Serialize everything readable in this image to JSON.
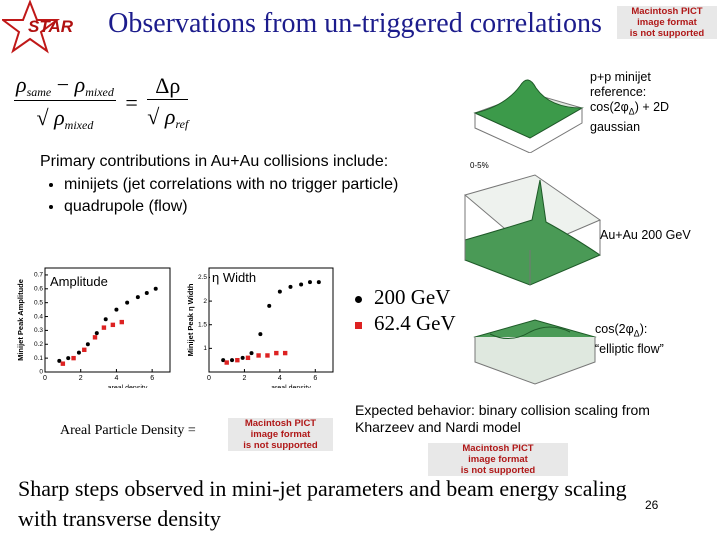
{
  "header": {
    "logo": "STAR",
    "title": "Observations from un-triggered correlations"
  },
  "pict_notice": [
    "Macintosh PICT",
    "image format",
    "is not supported"
  ],
  "formula": {
    "rho": "ρ",
    "same": "same",
    "mixed": "mixed",
    "ref": "ref",
    "minus": "−",
    "equals": "=",
    "delta_rho": "Δρ",
    "sqrt": "√"
  },
  "pp_caption": {
    "line1": "p+p minijet",
    "line2": "reference:",
    "cos_open": "cos(2φ",
    "sub": "Δ",
    "cos_close": ") + 2D",
    "line4": "gaussian"
  },
  "body": {
    "intro": "Primary contributions in Au+Au collisions include:",
    "bullets": [
      "minijets (jet correlations with no trigger particle)",
      "quadrupole (flow)"
    ]
  },
  "surface": {
    "centrality": "0-5%",
    "energy": "Au+Au 200 GeV"
  },
  "amplitude_plot": {
    "label": "Amplitude",
    "ylabel": "Minijet Peak Amplitude",
    "xlabel": "areal density",
    "xlim": [
      0,
      7
    ],
    "ylim": [
      0,
      0.75
    ],
    "xticks": [
      0,
      2,
      4,
      6
    ],
    "yticks": [
      0,
      0.1,
      0.2,
      0.3,
      0.4,
      0.5,
      0.6,
      0.7
    ],
    "series": [
      {
        "name": "200 GeV",
        "color": "#000000",
        "x": [
          0.8,
          1.3,
          1.9,
          2.4,
          2.9,
          3.4,
          4.0,
          4.6,
          5.2,
          5.7,
          6.2
        ],
        "values": [
          0.08,
          0.1,
          0.14,
          0.2,
          0.28,
          0.38,
          0.45,
          0.5,
          0.54,
          0.57,
          0.6
        ]
      },
      {
        "name": "62.4 GeV",
        "color": "#dd2222",
        "x": [
          1.0,
          1.6,
          2.2,
          2.8,
          3.3,
          3.8,
          4.3
        ],
        "values": [
          0.06,
          0.1,
          0.16,
          0.25,
          0.32,
          0.34,
          0.36
        ]
      }
    ]
  },
  "width_plot": {
    "label": "η Width",
    "ylabel": "Minijet Peak η Width",
    "xlabel": "areal density",
    "xlim": [
      0,
      7
    ],
    "ylim": [
      0.5,
      2.7
    ],
    "xticks": [
      0,
      2,
      4,
      6
    ],
    "yticks": [
      {
        "value": 1,
        "label": "1"
      },
      1.5,
      2,
      2.5
    ],
    "series": [
      {
        "name": "200 GeV",
        "color": "#000000",
        "x": [
          0.8,
          1.3,
          1.9,
          2.4,
          2.9,
          3.4,
          4.0,
          4.6,
          5.2,
          5.7,
          6.2
        ],
        "values": [
          0.75,
          0.75,
          0.8,
          0.9,
          1.3,
          1.9,
          2.2,
          2.3,
          2.35,
          2.4,
          2.4
        ]
      },
      {
        "name": "62.4 GeV",
        "color": "#dd2222",
        "x": [
          1.0,
          1.6,
          2.2,
          2.8,
          3.3,
          3.8,
          4.3
        ],
        "values": [
          0.7,
          0.75,
          0.8,
          0.85,
          0.85,
          0.9,
          0.9
        ]
      }
    ]
  },
  "legend": [
    "200 GeV",
    "62.4 GeV"
  ],
  "flow_caption": {
    "cos_open": "cos(2φ",
    "sub": "Δ",
    "cos_close": "):",
    "line2": "“elliptic flow”"
  },
  "areal": "Areal Particle Density =",
  "expected": "Expected behavior: binary collision scaling from Kharzeev and Nardi model",
  "conclusion": "Sharp steps observed in mini-jet parameters and beam energy scaling with transverse density",
  "page_number": 26
}
